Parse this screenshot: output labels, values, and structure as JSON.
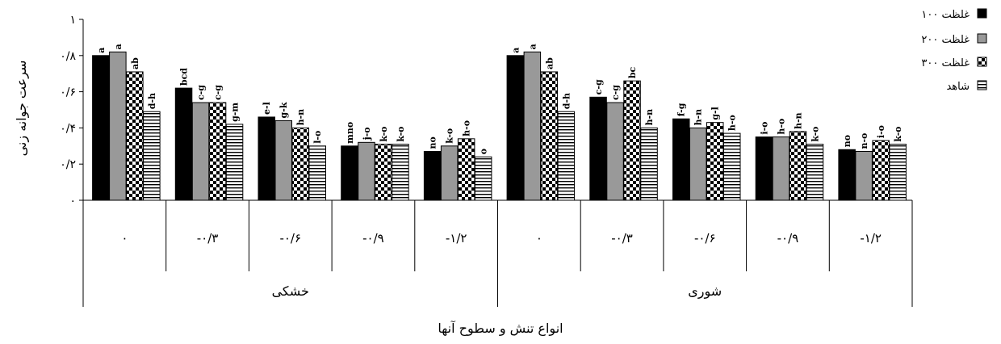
{
  "chart_data": {
    "type": "bar",
    "title": "",
    "xlabel": "انواع تنش و سطوح آنها",
    "ylabel": "سرعت جوانه زنی",
    "ylim": [
      0,
      1
    ],
    "yticks": [
      {
        "value": 0,
        "label": "۰"
      },
      {
        "value": 0.2,
        "label": "۰/۲"
      },
      {
        "value": 0.4,
        "label": "۰/۴"
      },
      {
        "value": 0.6,
        "label": "۰/۶"
      },
      {
        "value": 0.8,
        "label": "۰/۸"
      },
      {
        "value": 1,
        "label": "۱"
      }
    ],
    "groups": [
      {
        "name": "خشکی",
        "categories": [
          "۰",
          "-۰/۳",
          "-۰/۶",
          "-۰/۹",
          "-۱/۲"
        ]
      },
      {
        "name": "شوری",
        "categories": [
          "۰",
          "-۰/۳",
          "-۰/۶",
          "-۰/۹",
          "-۱/۲"
        ]
      }
    ],
    "series": [
      {
        "name": "غلظت ۱۰۰",
        "color": "#000000",
        "pattern": "solid-black",
        "values": [
          0.8,
          0.62,
          0.46,
          0.3,
          0.27,
          0.8,
          0.57,
          0.45,
          0.35,
          0.28
        ],
        "labels": [
          "a",
          "bcd",
          "e-l",
          "mno",
          "no",
          "a",
          "c-g",
          "f-g",
          "i-o",
          "no"
        ]
      },
      {
        "name": "غلظت ۲۰۰",
        "color": "#999999",
        "pattern": "solid-gray",
        "values": [
          0.82,
          0.54,
          0.44,
          0.32,
          0.3,
          0.82,
          0.54,
          0.4,
          0.35,
          0.27
        ],
        "labels": [
          "a",
          "c-g",
          "g-k",
          "j-o",
          "k-o",
          "a",
          "c-g",
          "h-n",
          "h-o",
          "n-o"
        ]
      },
      {
        "name": "غلظت ۳۰۰",
        "color": "#000000",
        "pattern": "checker",
        "values": [
          0.71,
          0.54,
          0.4,
          0.31,
          0.34,
          0.71,
          0.66,
          0.43,
          0.38,
          0.33
        ],
        "labels": [
          "ab",
          "c-g",
          "h-n",
          "k-o",
          "h-o",
          "ab",
          "bc",
          "g-l",
          "h-n",
          "i-o"
        ]
      },
      {
        "name": "شاهد",
        "color": "#000000",
        "pattern": "hstripe",
        "values": [
          0.49,
          0.42,
          0.3,
          0.31,
          0.24,
          0.49,
          0.4,
          0.37,
          0.31,
          0.31
        ],
        "labels": [
          "d-h",
          "g-m",
          "l-o",
          "k-o",
          "o",
          "d-h",
          "h-n",
          "h-o",
          "k-o",
          "k-o"
        ]
      }
    ],
    "legend_position": "top-right",
    "grid": false
  }
}
